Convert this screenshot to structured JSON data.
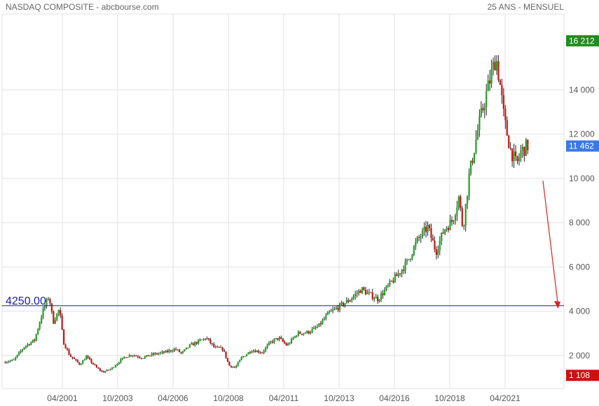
{
  "header": {
    "title": "NASDAQ COMPOSITE - abcbourse.com",
    "period": "25 ANS - MENSUEL"
  },
  "colors": {
    "up": "#22a022",
    "down": "#cc1111",
    "grid": "#e2e2e2",
    "level_line": "#1a1aaa",
    "arrow": "#dd2222",
    "badge_max": "#1f8c1f",
    "badge_last": "#3b78e6",
    "badge_min": "#cc1111"
  },
  "chart_data": {
    "type": "candlestick",
    "x_ticks": [
      "04/2001",
      "10/2003",
      "04/2006",
      "10/2008",
      "04/2011",
      "10/2013",
      "04/2016",
      "10/2018",
      "04/2021"
    ],
    "y_ticks": [
      2000,
      4000,
      6000,
      8000,
      10000,
      12000,
      14000
    ],
    "y_tick_labels": [
      "2 000",
      "4 000",
      "6 000",
      "8 000",
      "10 000",
      "12 000",
      "14 000"
    ],
    "ylim": [
      1108,
      16212
    ],
    "max_badge": {
      "value": 16212,
      "label": "16 212"
    },
    "last_badge": {
      "value": 11462,
      "label": "11 462"
    },
    "min_badge": {
      "value": 1108,
      "label": "1 108"
    },
    "level_line": {
      "value": 4250,
      "label": "4250.00"
    },
    "arrow": {
      "from_value": 9900,
      "to_value": 4150
    },
    "series": [
      {
        "t": 1998.0,
        "v": 1700
      },
      {
        "t": 1998.5,
        "v": 1800
      },
      {
        "t": 1999.0,
        "v": 2400
      },
      {
        "t": 1999.5,
        "v": 2700
      },
      {
        "t": 1999.9,
        "v": 4000
      },
      {
        "t": 2000.2,
        "v": 4700
      },
      {
        "t": 2000.4,
        "v": 3500
      },
      {
        "t": 2000.7,
        "v": 4100
      },
      {
        "t": 2000.9,
        "v": 2600
      },
      {
        "t": 2001.2,
        "v": 2000
      },
      {
        "t": 2001.7,
        "v": 1600
      },
      {
        "t": 2002.0,
        "v": 1950
      },
      {
        "t": 2002.5,
        "v": 1450
      },
      {
        "t": 2002.8,
        "v": 1250
      },
      {
        "t": 2003.2,
        "v": 1400
      },
      {
        "t": 2003.8,
        "v": 1900
      },
      {
        "t": 2004.2,
        "v": 2050
      },
      {
        "t": 2004.7,
        "v": 1900
      },
      {
        "t": 2005.2,
        "v": 2050
      },
      {
        "t": 2005.8,
        "v": 2150
      },
      {
        "t": 2006.3,
        "v": 2300
      },
      {
        "t": 2006.6,
        "v": 2100
      },
      {
        "t": 2007.0,
        "v": 2450
      },
      {
        "t": 2007.8,
        "v": 2800
      },
      {
        "t": 2008.2,
        "v": 2350
      },
      {
        "t": 2008.6,
        "v": 2300
      },
      {
        "t": 2008.9,
        "v": 1550
      },
      {
        "t": 2009.2,
        "v": 1450
      },
      {
        "t": 2009.5,
        "v": 1900
      },
      {
        "t": 2010.0,
        "v": 2250
      },
      {
        "t": 2010.5,
        "v": 2150
      },
      {
        "t": 2010.9,
        "v": 2600
      },
      {
        "t": 2011.3,
        "v": 2800
      },
      {
        "t": 2011.7,
        "v": 2450
      },
      {
        "t": 2012.2,
        "v": 3000
      },
      {
        "t": 2012.7,
        "v": 3050
      },
      {
        "t": 2013.2,
        "v": 3300
      },
      {
        "t": 2013.7,
        "v": 3900
      },
      {
        "t": 2014.2,
        "v": 4200
      },
      {
        "t": 2014.7,
        "v": 4500
      },
      {
        "t": 2015.3,
        "v": 5000
      },
      {
        "t": 2015.7,
        "v": 4750
      },
      {
        "t": 2016.1,
        "v": 4550
      },
      {
        "t": 2016.6,
        "v": 5150
      },
      {
        "t": 2017.0,
        "v": 5600
      },
      {
        "t": 2017.5,
        "v": 6200
      },
      {
        "t": 2018.0,
        "v": 7200
      },
      {
        "t": 2018.5,
        "v": 7800
      },
      {
        "t": 2018.9,
        "v": 6700
      },
      {
        "t": 2019.3,
        "v": 7700
      },
      {
        "t": 2019.7,
        "v": 8100
      },
      {
        "t": 2020.0,
        "v": 9150
      },
      {
        "t": 2020.2,
        "v": 7700
      },
      {
        "t": 2020.5,
        "v": 10100
      },
      {
        "t": 2020.9,
        "v": 12100
      },
      {
        "t": 2021.3,
        "v": 13700
      },
      {
        "t": 2021.8,
        "v": 15500
      },
      {
        "t": 2022.0,
        "v": 14200
      },
      {
        "t": 2022.2,
        "v": 12600
      },
      {
        "t": 2022.5,
        "v": 11300
      },
      {
        "t": 2022.8,
        "v": 10600
      },
      {
        "t": 2023.0,
        "v": 11200
      },
      {
        "t": 2023.3,
        "v": 11462
      }
    ]
  }
}
